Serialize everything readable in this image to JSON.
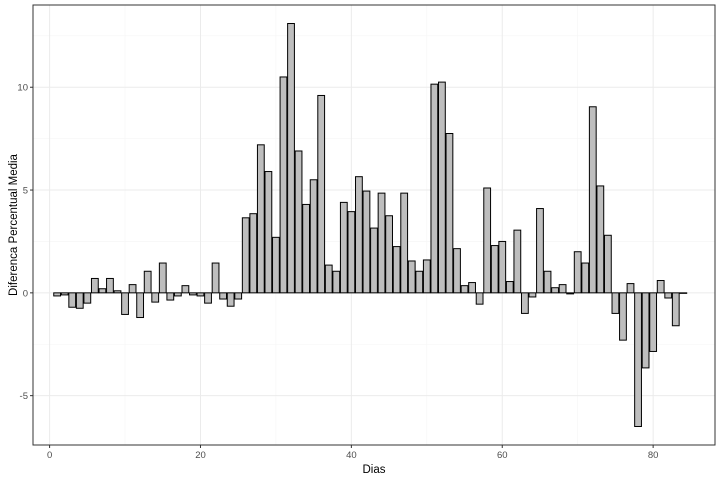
{
  "chart_data": {
    "type": "bar",
    "title": "",
    "xlabel": "Dias",
    "ylabel": "Diferenca Percentual Media",
    "xlim": [
      -2.2,
      88.2
    ],
    "ylim": [
      -7.4,
      14.0
    ],
    "x_ticks": [
      0,
      20,
      40,
      60,
      80
    ],
    "y_ticks": [
      -5,
      0,
      5,
      10
    ],
    "grid": true,
    "legend": "none",
    "colors": {
      "bar_fill": "#bebebe",
      "bar_stroke": "#000000",
      "grid_major": "#ebebeb",
      "grid_minor": "#f5f5f5",
      "panel_border": "#333333",
      "tick_label": "#4d4d4d"
    },
    "x": [
      1,
      2,
      3,
      4,
      5,
      6,
      7,
      8,
      9,
      10,
      11,
      12,
      13,
      14,
      15,
      16,
      17,
      18,
      19,
      20,
      21,
      22,
      23,
      24,
      25,
      26,
      27,
      28,
      29,
      30,
      31,
      32,
      33,
      34,
      35,
      36,
      37,
      38,
      39,
      40,
      41,
      42,
      43,
      44,
      45,
      46,
      47,
      48,
      49,
      50,
      51,
      52,
      53,
      54,
      55,
      56,
      57,
      58,
      59,
      60,
      61,
      62,
      63,
      64,
      65,
      66,
      67,
      68,
      69,
      70,
      71,
      72,
      73,
      74,
      75,
      76,
      77,
      78,
      79,
      80,
      81,
      82,
      83,
      84
    ],
    "values": [
      -0.15,
      -0.1,
      -0.7,
      -0.75,
      -0.5,
      0.7,
      0.2,
      0.7,
      0.1,
      -1.05,
      0.4,
      -1.2,
      1.05,
      -0.45,
      1.45,
      -0.35,
      -0.15,
      0.35,
      -0.1,
      -0.15,
      -0.5,
      1.45,
      -0.3,
      -0.65,
      -0.3,
      3.65,
      3.85,
      7.2,
      5.9,
      2.7,
      10.5,
      13.1,
      6.9,
      4.3,
      5.5,
      9.6,
      1.35,
      1.05,
      4.4,
      3.95,
      5.65,
      4.95,
      3.15,
      4.85,
      3.75,
      2.25,
      4.85,
      1.55,
      1.05,
      1.6,
      10.15,
      10.25,
      7.75,
      2.15,
      0.35,
      0.5,
      -0.55,
      5.1,
      2.3,
      2.5,
      0.55,
      3.05,
      -1.0,
      -0.2,
      4.1,
      1.05,
      0.25,
      0.4,
      -0.05,
      2.0,
      1.45,
      9.05,
      5.2,
      2.8,
      -1.0,
      -2.3,
      0.45,
      -6.5,
      -3.65,
      -2.85,
      0.6,
      -0.25,
      -1.6,
      0.0
    ]
  }
}
